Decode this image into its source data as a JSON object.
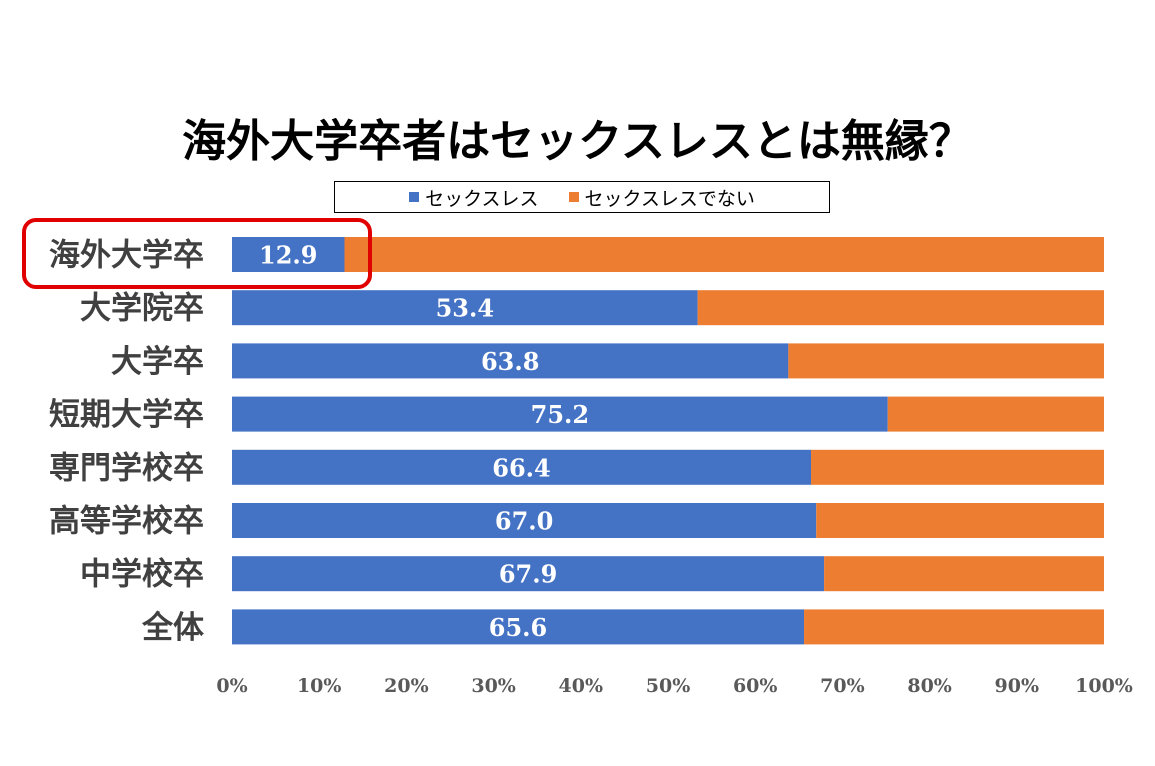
{
  "chart_data": {
    "type": "bar",
    "orientation": "horizontal",
    "stacked": true,
    "percent_stacked": true,
    "title": "海外大学卒者はセックスレスとは無縁？",
    "categories": [
      "海外大学卒",
      "大学院卒",
      "大学卒",
      "短期大学卒",
      "専門学校卒",
      "高等学校卒",
      "中学校卒",
      "全体"
    ],
    "value_labels": [
      "12.9",
      "53.4",
      "63.8",
      "75.2",
      "66.4",
      "67.0",
      "67.9",
      "65.6"
    ],
    "series": [
      {
        "name": "セックスレス",
        "color": "#4472C4",
        "values": [
          12.9,
          53.4,
          63.8,
          75.2,
          66.4,
          67.0,
          67.9,
          65.6
        ]
      },
      {
        "name": "セックスレスでない",
        "color": "#ED7D31",
        "values": [
          87.1,
          46.6,
          36.2,
          24.8,
          33.6,
          33.0,
          32.1,
          34.4
        ]
      }
    ],
    "xlim": [
      0,
      100
    ],
    "x_ticks": [
      "0%",
      "10%",
      "20%",
      "30%",
      "40%",
      "50%",
      "60%",
      "70%",
      "80%",
      "90%",
      "100%"
    ],
    "grid": false,
    "legend_position": "top",
    "highlight": {
      "category": "海外大学卒",
      "color": "#E00000"
    }
  }
}
